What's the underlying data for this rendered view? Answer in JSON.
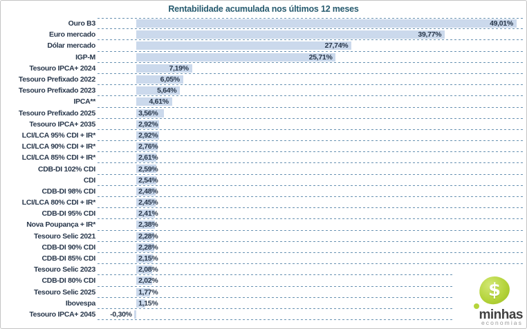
{
  "title": "Rentabilidade acumulada nos últimos 12 meses",
  "chart_data": {
    "type": "bar",
    "orientation": "horizontal",
    "title": "Rentabilidade acumulada nos últimos 12 meses",
    "categories": [
      "Ouro B3",
      "Euro mercado",
      "Dólar mercado",
      "IGP-M",
      "Tesouro IPCA+ 2024",
      "Tesouro Prefixado 2022",
      "Tesouro Prefixado 2023",
      "IPCA**",
      "Tesouro Prefixado 2025",
      "Tesouro IPCA+ 2035",
      "LCI/LCA 95% CDI + IR*",
      "LCI/LCA 90% CDI + IR*",
      "LCI/LCA 85% CDI + IR*",
      "CDB-DI 102% CDI",
      "CDI",
      "CDB-DI 98% CDI",
      "LCI/LCA 80% CDI + IR*",
      "CDB-DI 95% CDI",
      "Nova Poupança + IR*",
      "Tesouro Selic 2021",
      "CDB-DI 90% CDI",
      "CDB-DI 85% CDI",
      "Tesouro Selic 2023",
      "CDB-DI 80% CDI",
      "Tesouro Selic 2025",
      "Ibovespa",
      "Tesouro IPCA+ 2045"
    ],
    "values": [
      49.01,
      39.77,
      27.74,
      25.71,
      7.19,
      6.05,
      5.64,
      4.61,
      3.56,
      2.92,
      2.92,
      2.76,
      2.61,
      2.59,
      2.54,
      2.48,
      2.45,
      2.41,
      2.38,
      2.28,
      2.28,
      2.15,
      2.08,
      2.02,
      1.77,
      1.15,
      -0.3
    ],
    "value_labels": [
      "49,01%",
      "39,77%",
      "27,74%",
      "25,71%",
      "7,19%",
      "6,05%",
      "5,64%",
      "4,61%",
      "3,56%",
      "2,92%",
      "2,92%",
      "2,76%",
      "2,61%",
      "2,59%",
      "2,54%",
      "2,48%",
      "2,45%",
      "2,41%",
      "2,38%",
      "2,28%",
      "2,28%",
      "2,15%",
      "2,08%",
      "2,02%",
      "1,77%",
      "1,15%",
      "-0,30%"
    ],
    "xlim": [
      -5,
      50
    ],
    "value_axis_visible": false,
    "gridlines": "dashed horizontal separators between categories",
    "legend": "none",
    "bar_color": "#cbd9ec",
    "gridline_color": "#648fb0",
    "text_color": "#27364a",
    "title_color": "#265a6e"
  },
  "logo": {
    "name": "minhas",
    "subtitle": "economias",
    "dollar_symbol": "$",
    "green": "#a9cc2d"
  }
}
